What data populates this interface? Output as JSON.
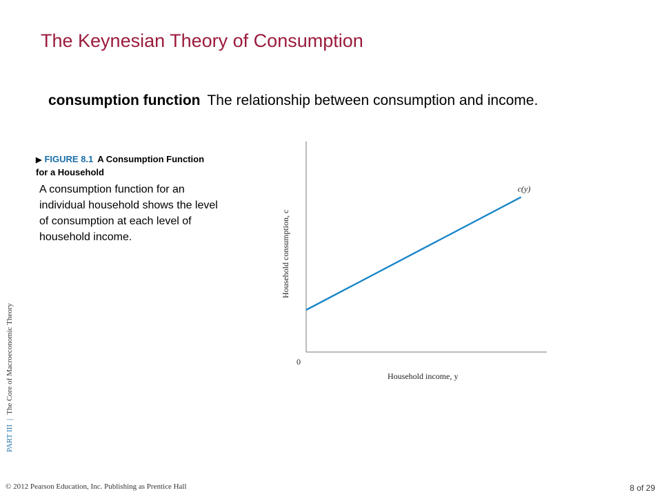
{
  "slide": {
    "title": "The Keynesian Theory of Consumption",
    "definition_term": "consumption function",
    "definition_text": "The relationship between consumption and income.",
    "figure_number": "FIGURE 8.1",
    "figure_title": "A Consumption Function for a Household",
    "figure_description": "A consumption function for an individual household shows the level of consumption at each level of household income.",
    "side_part": "PART III",
    "side_text": "The Core of Macroeconomic Theory",
    "copyright": "© 2012 Pearson Education, Inc. Publishing as Prentice Hall",
    "page_number": "8 of 29",
    "title_color": "#9b1c3c",
    "accent_color": "#1a6ea8",
    "line_color": "#1a86c8"
  },
  "chart_data": {
    "type": "line",
    "title": "",
    "xlabel": "Household income, y",
    "ylabel": "Household consumption, c",
    "origin_label": "0",
    "series": [
      {
        "name": "c(y)",
        "x": [
          0,
          1
        ],
        "y": [
          0.25,
          0.92
        ]
      }
    ],
    "xlim": [
      0,
      1.12
    ],
    "ylim": [
      0,
      1.25
    ],
    "grid": false
  }
}
